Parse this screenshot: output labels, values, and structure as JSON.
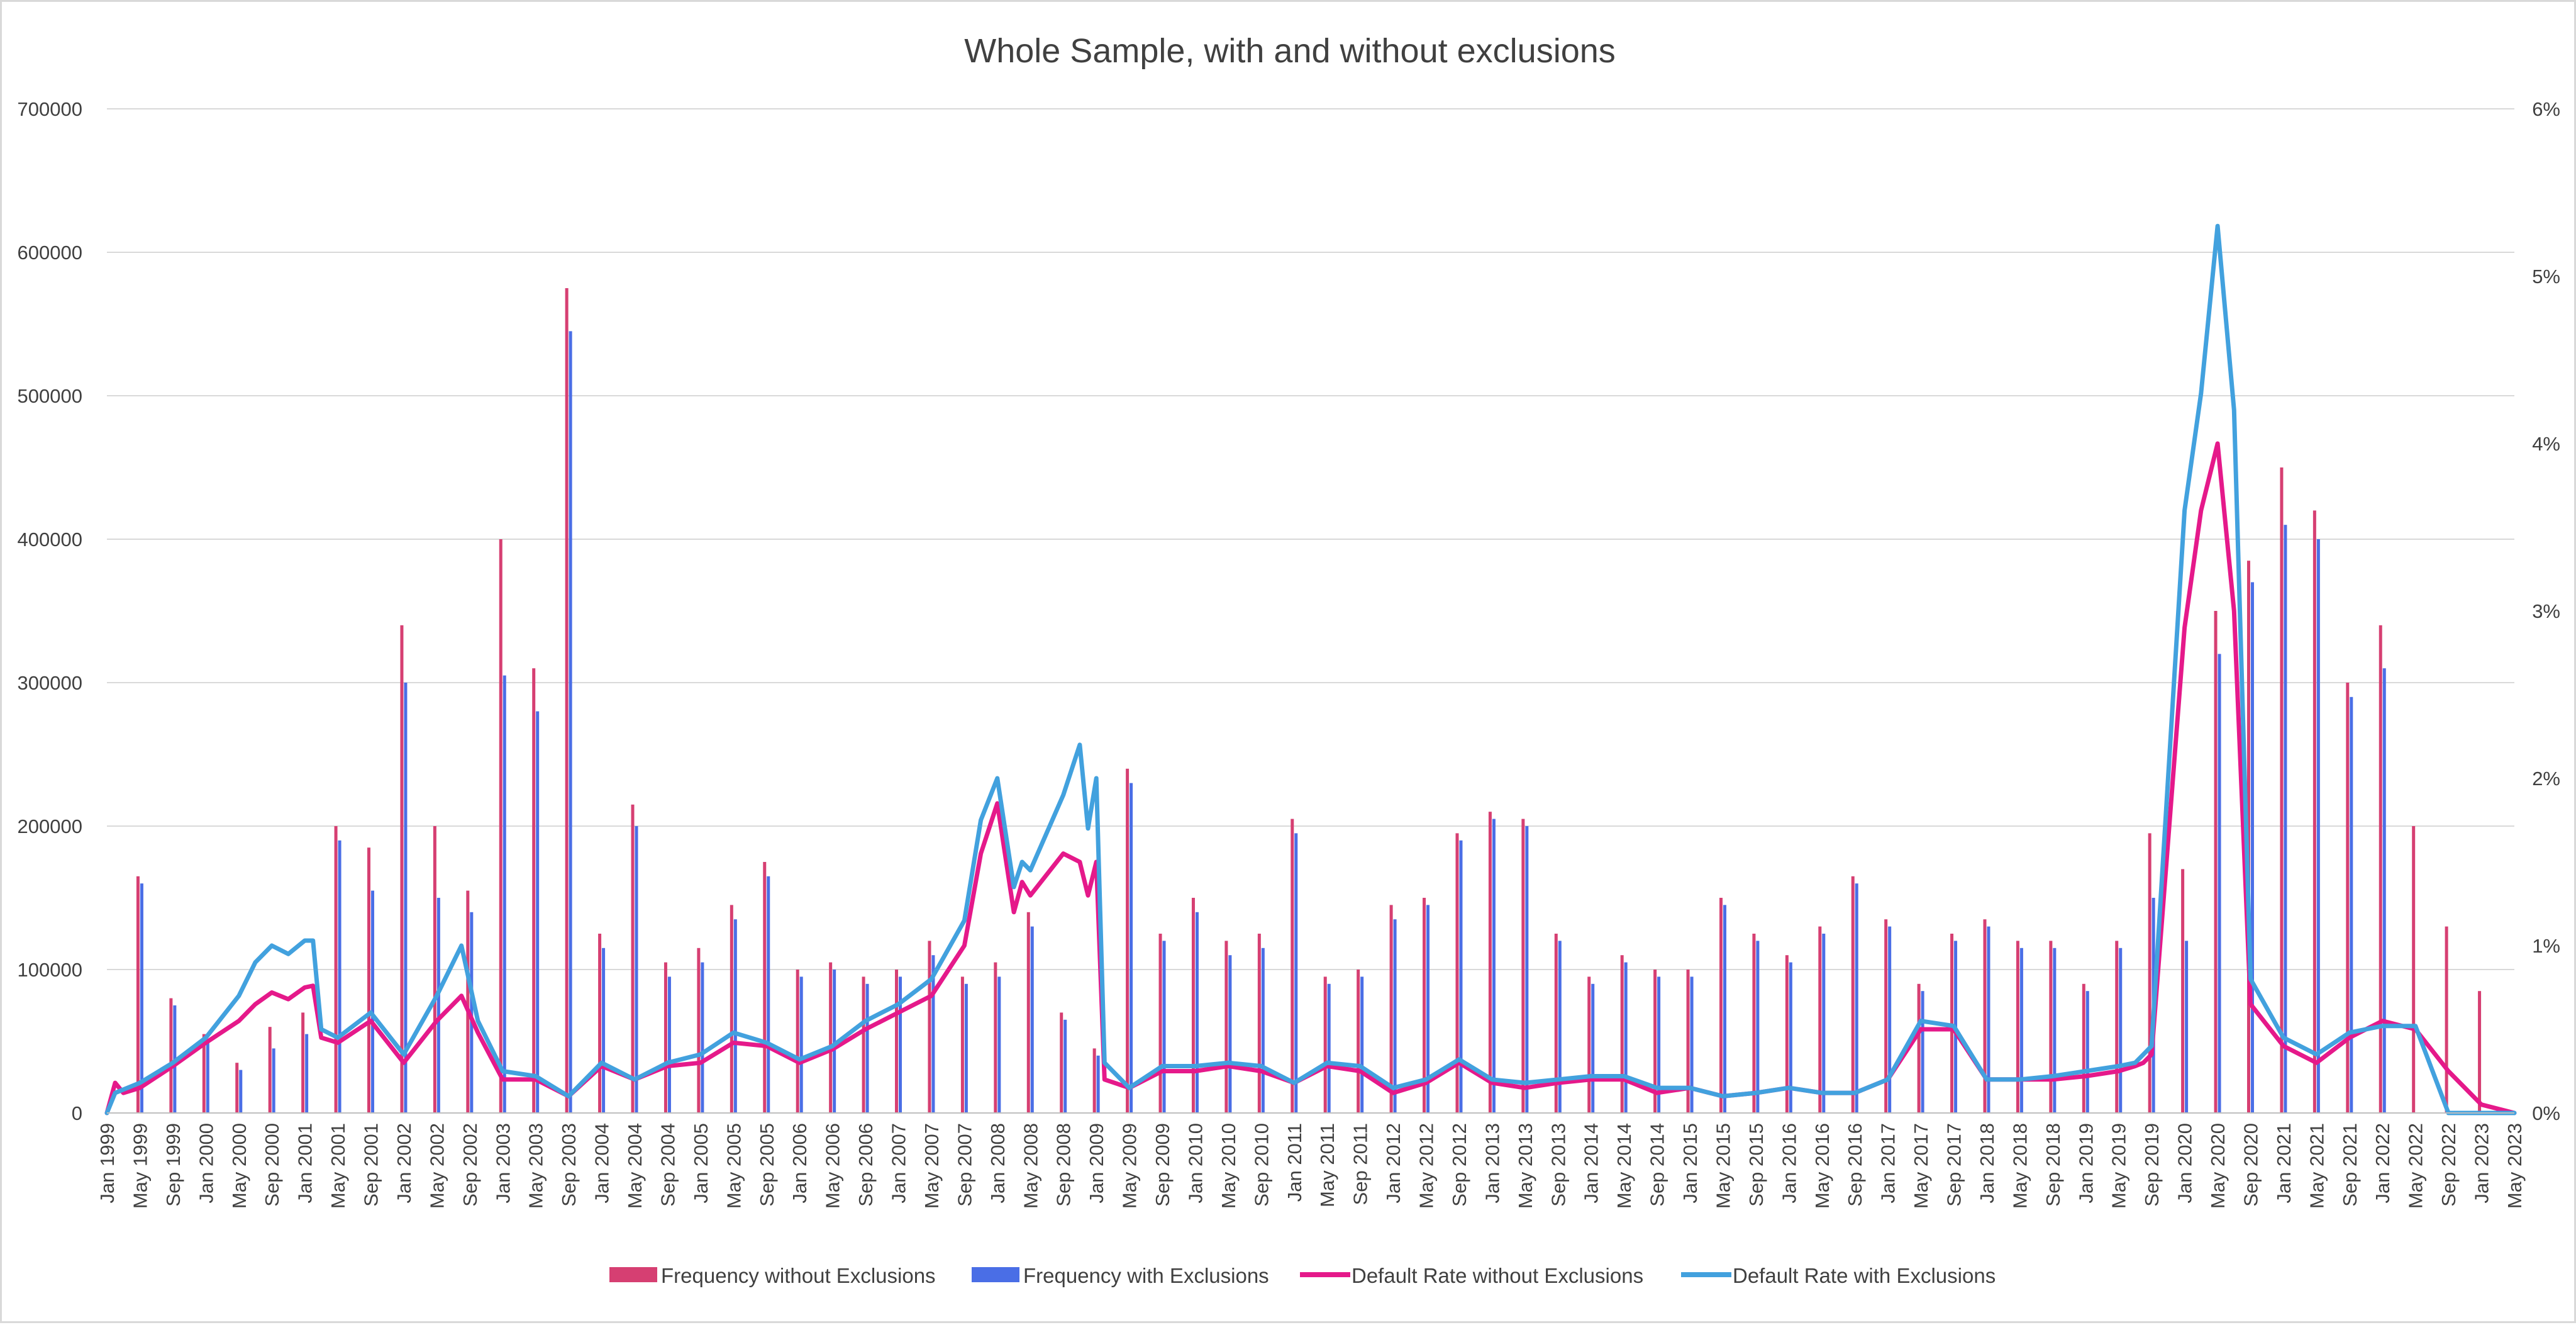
{
  "chart_data": {
    "type": "bar",
    "title": "Whole Sample, with and without exclusions",
    "xlabel": "",
    "ylabel": "",
    "y_left": {
      "ylim": [
        0,
        700000
      ],
      "ticks": [
        0,
        100000,
        200000,
        300000,
        400000,
        500000,
        600000,
        700000
      ],
      "tick_labels": [
        "0",
        "100000",
        "200000",
        "300000",
        "400000",
        "500000",
        "600000",
        "700000"
      ]
    },
    "y_right": {
      "ylim": [
        0,
        6
      ],
      "ticks": [
        0,
        1,
        2,
        3,
        4,
        5,
        6
      ],
      "tick_labels": [
        "0%",
        "1%",
        "2%",
        "3%",
        "4%",
        "5%",
        "6%"
      ]
    },
    "x_range": [
      "Jan 1999",
      "May 2023"
    ],
    "x_tick_labels": [
      "Jan 1999",
      "May 1999",
      "Sep 1999",
      "Jan 2000",
      "May 2000",
      "Sep 2000",
      "Jan 2001",
      "May 2001",
      "Sep 2001",
      "Jan 2002",
      "May 2002",
      "Sep 2002",
      "Jan 2003",
      "May 2003",
      "Sep 2003",
      "Jan 2004",
      "May 2004",
      "Sep 2004",
      "Jan 2005",
      "May 2005",
      "Sep 2005",
      "Jan 2006",
      "May 2006",
      "Sep 2006",
      "Jan 2007",
      "May 2007",
      "Sep 2007",
      "Jan 2008",
      "May 2008",
      "Sep 2008",
      "Jan 2009",
      "May 2009",
      "Sep 2009",
      "Jan 2010",
      "May 2010",
      "Sep 2010",
      "Jan 2011",
      "May 2011",
      "Sep 2011",
      "Jan 2012",
      "May 2012",
      "Sep 2012",
      "Jan 2013",
      "May 2013",
      "Sep 2013",
      "Jan 2014",
      "May 2014",
      "Sep 2014",
      "Jan 2015",
      "May 2015",
      "Sep 2015",
      "Jan 2016",
      "May 2016",
      "Sep 2016",
      "Jan 2017",
      "May 2017",
      "Sep 2017",
      "Jan 2018",
      "May 2018",
      "Sep 2018",
      "Jan 2019",
      "May 2019",
      "Sep 2019",
      "Jan 2020",
      "May 2020",
      "Sep 2020",
      "Jan 2021",
      "May 2021",
      "Sep 2021",
      "Jan 2022",
      "May 2022",
      "Sep 2022",
      "Jan 2023",
      "May 2023"
    ],
    "grid": true,
    "legend_position": "bottom",
    "colors": {
      "freq_without": "#d63f72",
      "freq_with": "#4a6ee6",
      "rate_without": "#e5198a",
      "rate_with": "#42a1de"
    },
    "series": [
      {
        "name": "Frequency without Exclusions",
        "kind": "bar",
        "axis": "left",
        "x": [
          "Jan 1999",
          "May 1999",
          "Sep 1999",
          "Jan 2000",
          "May 2000",
          "Sep 2000",
          "Jan 2001",
          "May 2001",
          "Sep 2001",
          "Jan 2002",
          "May 2002",
          "Sep 2002",
          "Jan 2003",
          "May 2003",
          "Sep 2003",
          "Jan 2004",
          "May 2004",
          "Sep 2004",
          "Jan 2005",
          "May 2005",
          "Sep 2005",
          "Jan 2006",
          "May 2006",
          "Sep 2006",
          "Jan 2007",
          "May 2007",
          "Sep 2007",
          "Jan 2008",
          "May 2008",
          "Sep 2008",
          "Jan 2009",
          "May 2009",
          "Sep 2009",
          "Jan 2010",
          "May 2010",
          "Sep 2010",
          "Jan 2011",
          "May 2011",
          "Sep 2011",
          "Jan 2012",
          "May 2012",
          "Sep 2012",
          "Jan 2013",
          "May 2013",
          "Sep 2013",
          "Jan 2014",
          "May 2014",
          "Sep 2014",
          "Jan 2015",
          "May 2015",
          "Sep 2015",
          "Jan 2016",
          "May 2016",
          "Sep 2016",
          "Jan 2017",
          "May 2017",
          "Sep 2017",
          "Jan 2018",
          "May 2018",
          "Sep 2018",
          "Jan 2019",
          "May 2019",
          "Sep 2019",
          "Jan 2020",
          "May 2020",
          "Sep 2020",
          "Jan 2021",
          "May 2021",
          "Sep 2021",
          "Jan 2022",
          "May 2022",
          "Sep 2022",
          "Jan 2023",
          "May 2023"
        ],
        "values": [
          0,
          165000,
          80000,
          55000,
          35000,
          60000,
          70000,
          200000,
          185000,
          340000,
          200000,
          155000,
          400000,
          310000,
          575000,
          125000,
          215000,
          105000,
          115000,
          145000,
          175000,
          100000,
          105000,
          95000,
          100000,
          120000,
          95000,
          105000,
          140000,
          70000,
          45000,
          240000,
          125000,
          150000,
          120000,
          125000,
          205000,
          95000,
          100000,
          145000,
          150000,
          195000,
          210000,
          205000,
          125000,
          95000,
          110000,
          100000,
          100000,
          150000,
          125000,
          110000,
          130000,
          165000,
          135000,
          90000,
          125000,
          135000,
          120000,
          120000,
          90000,
          120000,
          195000,
          170000,
          350000,
          385000,
          450000,
          420000,
          300000,
          340000,
          200000,
          130000,
          85000,
          0
        ]
      },
      {
        "name": "Frequency with Exclusions",
        "kind": "bar",
        "axis": "left",
        "x": [
          "Jan 1999",
          "May 1999",
          "Sep 1999",
          "Jan 2000",
          "May 2000",
          "Sep 2000",
          "Jan 2001",
          "May 2001",
          "Sep 2001",
          "Jan 2002",
          "May 2002",
          "Sep 2002",
          "Jan 2003",
          "May 2003",
          "Sep 2003",
          "Jan 2004",
          "May 2004",
          "Sep 2004",
          "Jan 2005",
          "May 2005",
          "Sep 2005",
          "Jan 2006",
          "May 2006",
          "Sep 2006",
          "Jan 2007",
          "May 2007",
          "Sep 2007",
          "Jan 2008",
          "May 2008",
          "Sep 2008",
          "Jan 2009",
          "May 2009",
          "Sep 2009",
          "Jan 2010",
          "May 2010",
          "Sep 2010",
          "Jan 2011",
          "May 2011",
          "Sep 2011",
          "Jan 2012",
          "May 2012",
          "Sep 2012",
          "Jan 2013",
          "May 2013",
          "Sep 2013",
          "Jan 2014",
          "May 2014",
          "Sep 2014",
          "Jan 2015",
          "May 2015",
          "Sep 2015",
          "Jan 2016",
          "May 2016",
          "Sep 2016",
          "Jan 2017",
          "May 2017",
          "Sep 2017",
          "Jan 2018",
          "May 2018",
          "Sep 2018",
          "Jan 2019",
          "May 2019",
          "Sep 2019",
          "Jan 2020",
          "May 2020",
          "Sep 2020",
          "Jan 2021",
          "May 2021",
          "Sep 2021",
          "Jan 2022",
          "May 2022",
          "Sep 2022",
          "Jan 2023",
          "May 2023"
        ],
        "values": [
          0,
          160000,
          75000,
          50000,
          30000,
          45000,
          55000,
          190000,
          155000,
          300000,
          150000,
          140000,
          305000,
          280000,
          545000,
          115000,
          200000,
          95000,
          105000,
          135000,
          165000,
          95000,
          100000,
          90000,
          95000,
          110000,
          90000,
          95000,
          130000,
          65000,
          40000,
          230000,
          120000,
          140000,
          110000,
          115000,
          195000,
          90000,
          95000,
          135000,
          145000,
          190000,
          205000,
          200000,
          120000,
          90000,
          105000,
          95000,
          95000,
          145000,
          120000,
          105000,
          125000,
          160000,
          130000,
          85000,
          120000,
          130000,
          115000,
          115000,
          85000,
          115000,
          150000,
          120000,
          320000,
          370000,
          410000,
          400000,
          290000,
          310000,
          0,
          0,
          0,
          0
        ]
      },
      {
        "name": "Default Rate without Exclusions",
        "kind": "line",
        "axis": "right",
        "x": [
          "Jan 1999",
          "Feb 1999",
          "Mar 1999",
          "May 1999",
          "Sep 1999",
          "Jan 2000",
          "May 2000",
          "Jul 2000",
          "Sep 2000",
          "Nov 2000",
          "Jan 2001",
          "Feb 2001",
          "Mar 2001",
          "May 2001",
          "Sep 2001",
          "Jan 2002",
          "May 2002",
          "Aug 2002",
          "Oct 2002",
          "Jan 2003",
          "May 2003",
          "Sep 2003",
          "Jan 2004",
          "May 2004",
          "Sep 2004",
          "Jan 2005",
          "May 2005",
          "Sep 2005",
          "Jan 2006",
          "May 2006",
          "Sep 2006",
          "Jan 2007",
          "May 2007",
          "Sep 2007",
          "Nov 2007",
          "Jan 2008",
          "Mar 2008",
          "Apr 2008",
          "May 2008",
          "Sep 2008",
          "Nov 2008",
          "Dec 2008",
          "Jan 2009",
          "Feb 2009",
          "May 2009",
          "Sep 2009",
          "Jan 2010",
          "May 2010",
          "Sep 2010",
          "Jan 2011",
          "May 2011",
          "Sep 2011",
          "Jan 2012",
          "May 2012",
          "Sep 2012",
          "Jan 2013",
          "May 2013",
          "Sep 2013",
          "Jan 2014",
          "May 2014",
          "Sep 2014",
          "Jan 2015",
          "May 2015",
          "Sep 2015",
          "Jan 2016",
          "May 2016",
          "Sep 2016",
          "Jan 2017",
          "May 2017",
          "Sep 2017",
          "Jan 2018",
          "May 2018",
          "Sep 2018",
          "Jan 2019",
          "May 2019",
          "Jul 2019",
          "Aug 2019",
          "Sep 2019",
          "Jan 2020",
          "Mar 2020",
          "May 2020",
          "Jul 2020",
          "Sep 2020",
          "Jan 2021",
          "May 2021",
          "Sep 2021",
          "Jan 2022",
          "May 2022",
          "Sep 2022",
          "Jan 2023",
          "May 2023"
        ],
        "values": [
          0.0,
          0.18,
          0.12,
          0.15,
          0.28,
          0.42,
          0.55,
          0.65,
          0.72,
          0.68,
          0.75,
          0.76,
          0.45,
          0.42,
          0.55,
          0.3,
          0.55,
          0.7,
          0.48,
          0.2,
          0.2,
          0.1,
          0.28,
          0.2,
          0.28,
          0.3,
          0.42,
          0.4,
          0.3,
          0.38,
          0.5,
          0.6,
          0.7,
          1.0,
          1.55,
          1.85,
          1.2,
          1.38,
          1.3,
          1.55,
          1.5,
          1.3,
          1.5,
          0.2,
          0.15,
          0.25,
          0.25,
          0.28,
          0.25,
          0.18,
          0.28,
          0.25,
          0.12,
          0.18,
          0.3,
          0.18,
          0.15,
          0.18,
          0.2,
          0.2,
          0.12,
          0.15,
          0.1,
          0.12,
          0.15,
          0.12,
          0.12,
          0.2,
          0.5,
          0.5,
          0.2,
          0.2,
          0.2,
          0.22,
          0.25,
          0.28,
          0.3,
          0.35,
          2.9,
          3.6,
          4.0,
          3.0,
          0.65,
          0.4,
          0.3,
          0.45,
          0.55,
          0.5,
          0.25,
          0.05,
          0.0
        ]
      },
      {
        "name": "Default Rate with Exclusions",
        "kind": "line",
        "axis": "right",
        "x": [
          "Jan 1999",
          "Feb 1999",
          "Mar 1999",
          "May 1999",
          "Sep 1999",
          "Jan 2000",
          "May 2000",
          "Jul 2000",
          "Sep 2000",
          "Nov 2000",
          "Jan 2001",
          "Feb 2001",
          "Mar 2001",
          "May 2001",
          "Sep 2001",
          "Jan 2002",
          "May 2002",
          "Aug 2002",
          "Oct 2002",
          "Jan 2003",
          "May 2003",
          "Sep 2003",
          "Jan 2004",
          "May 2004",
          "Sep 2004",
          "Jan 2005",
          "May 2005",
          "Sep 2005",
          "Jan 2006",
          "May 2006",
          "Sep 2006",
          "Jan 2007",
          "May 2007",
          "Sep 2007",
          "Nov 2007",
          "Jan 2008",
          "Mar 2008",
          "Apr 2008",
          "May 2008",
          "Sep 2008",
          "Nov 2008",
          "Dec 2008",
          "Jan 2009",
          "Feb 2009",
          "May 2009",
          "Sep 2009",
          "Jan 2010",
          "May 2010",
          "Sep 2010",
          "Jan 2011",
          "May 2011",
          "Sep 2011",
          "Jan 2012",
          "May 2012",
          "Sep 2012",
          "Jan 2013",
          "May 2013",
          "Sep 2013",
          "Jan 2014",
          "May 2014",
          "Sep 2014",
          "Jan 2015",
          "May 2015",
          "Sep 2015",
          "Jan 2016",
          "May 2016",
          "Sep 2016",
          "Jan 2017",
          "May 2017",
          "Sep 2017",
          "Jan 2018",
          "May 2018",
          "Sep 2018",
          "Jan 2019",
          "May 2019",
          "Jul 2019",
          "Aug 2019",
          "Sep 2019",
          "Jan 2020",
          "Mar 2020",
          "May 2020",
          "Jul 2020",
          "Sep 2020",
          "Jan 2021",
          "May 2021",
          "Sep 2021",
          "Jan 2022",
          "May 2022",
          "Sep 2022",
          "Jan 2023",
          "May 2023"
        ],
        "values": [
          0.0,
          0.12,
          0.14,
          0.18,
          0.3,
          0.45,
          0.7,
          0.9,
          1.0,
          0.95,
          1.03,
          1.03,
          0.5,
          0.45,
          0.6,
          0.35,
          0.7,
          1.0,
          0.55,
          0.25,
          0.22,
          0.1,
          0.3,
          0.2,
          0.3,
          0.35,
          0.48,
          0.42,
          0.32,
          0.4,
          0.55,
          0.65,
          0.8,
          1.15,
          1.75,
          2.0,
          1.35,
          1.5,
          1.45,
          1.9,
          2.2,
          1.7,
          2.0,
          0.3,
          0.15,
          0.28,
          0.28,
          0.3,
          0.28,
          0.18,
          0.3,
          0.28,
          0.15,
          0.2,
          0.32,
          0.2,
          0.18,
          0.2,
          0.22,
          0.22,
          0.15,
          0.15,
          0.1,
          0.12,
          0.15,
          0.12,
          0.12,
          0.2,
          0.55,
          0.52,
          0.2,
          0.2,
          0.22,
          0.25,
          0.28,
          0.3,
          0.35,
          0.4,
          3.6,
          4.3,
          5.3,
          4.2,
          0.8,
          0.45,
          0.35,
          0.48,
          0.52,
          0.52,
          0.0,
          0.0,
          0.0
        ]
      }
    ]
  }
}
